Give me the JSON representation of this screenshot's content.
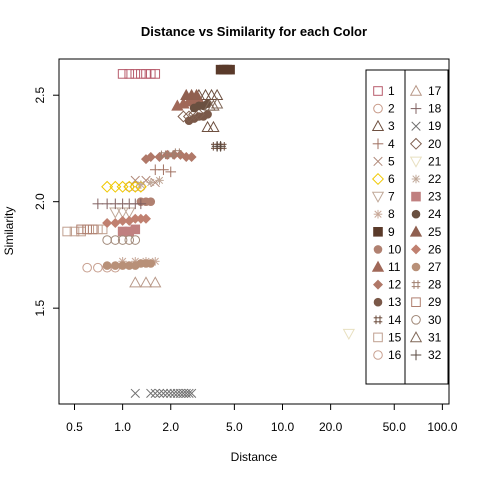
{
  "chart_data": {
    "type": "scatter",
    "title": "Distance vs Similarity for each Color",
    "xlabel": "Distance",
    "ylabel": "Similarity",
    "x_scale": "log",
    "xlim": [
      0.4,
      110
    ],
    "ylim": [
      1.05,
      2.67
    ],
    "x_ticks": [
      0.5,
      1.0,
      2.0,
      5.0,
      10.0,
      20.0,
      50.0,
      100.0
    ],
    "x_tick_labels": [
      "0.5",
      "1.0",
      "2.0",
      "5.0",
      "10.0",
      "20.0",
      "50.0",
      "100.0"
    ],
    "y_ticks": [
      1.5,
      2.0,
      2.5
    ],
    "y_tick_labels": [
      "1.5",
      "2.0",
      "2.5"
    ],
    "grid": false,
    "legend_position": "right",
    "series": [
      {
        "name": "1",
        "symbol": "square",
        "color": "#b85c6c",
        "points": [
          [
            1.0,
            2.6
          ],
          [
            1.1,
            2.6
          ],
          [
            1.2,
            2.6
          ],
          [
            1.3,
            2.6
          ],
          [
            1.4,
            2.6
          ],
          [
            1.5,
            2.6
          ],
          [
            1.6,
            2.6
          ]
        ]
      },
      {
        "name": "2",
        "symbol": "circle",
        "color": "#c89a88",
        "points": [
          [
            1.1,
            2.07
          ],
          [
            1.2,
            2.07
          ],
          [
            1.3,
            2.07
          ]
        ]
      },
      {
        "name": "3",
        "symbol": "triangle",
        "color": "#6e5040",
        "points": [
          [
            3.0,
            2.5
          ],
          [
            3.3,
            2.5
          ],
          [
            3.6,
            2.5
          ],
          [
            3.9,
            2.5
          ],
          [
            3.4,
            2.35
          ],
          [
            3.7,
            2.35
          ]
        ]
      },
      {
        "name": "4",
        "symbol": "plus",
        "color": "#a07060",
        "points": [
          [
            1.6,
            2.15
          ],
          [
            1.8,
            2.15
          ],
          [
            2.0,
            2.14
          ]
        ]
      },
      {
        "name": "5",
        "symbol": "x",
        "color": "#b08878",
        "points": [
          [
            1.2,
            2.1
          ],
          [
            1.4,
            2.1
          ],
          [
            1.6,
            2.09
          ]
        ]
      },
      {
        "name": "6",
        "symbol": "diamond",
        "color": "#f0c800",
        "points": [
          [
            0.8,
            2.07
          ],
          [
            0.9,
            2.07
          ],
          [
            1.0,
            2.07
          ],
          [
            1.1,
            2.07
          ],
          [
            1.2,
            2.07
          ],
          [
            1.3,
            2.07
          ]
        ]
      },
      {
        "name": "7",
        "symbol": "inv-triangle",
        "color": "#c0a898",
        "points": [
          [
            0.9,
            1.95
          ],
          [
            1.0,
            1.95
          ],
          [
            1.1,
            1.95
          ]
        ]
      },
      {
        "name": "8",
        "symbol": "asterisk",
        "color": "#c8a898",
        "points": [
          [
            1.0,
            1.72
          ],
          [
            1.2,
            1.72
          ],
          [
            1.4,
            1.72
          ],
          [
            1.6,
            1.72
          ]
        ]
      },
      {
        "name": "9",
        "symbol": "filled-square",
        "color": "#5a3a2a",
        "points": [
          [
            4.1,
            2.62
          ],
          [
            4.3,
            2.62
          ],
          [
            4.5,
            2.62
          ],
          [
            4.7,
            2.62
          ]
        ]
      },
      {
        "name": "10",
        "symbol": "filled-circle",
        "color": "#b08070",
        "points": [
          [
            1.3,
            2.0
          ],
          [
            1.4,
            2.0
          ],
          [
            1.5,
            2.0
          ]
        ]
      },
      {
        "name": "11",
        "symbol": "filled-triangle",
        "color": "#a06858",
        "points": [
          [
            2.2,
            2.45
          ],
          [
            2.4,
            2.46
          ],
          [
            2.6,
            2.47
          ],
          [
            2.8,
            2.48
          ],
          [
            3.0,
            2.48
          ]
        ]
      },
      {
        "name": "12",
        "symbol": "filled-diamond",
        "color": "#b07868",
        "points": [
          [
            1.4,
            2.2
          ],
          [
            1.5,
            2.21
          ],
          [
            1.7,
            2.21
          ],
          [
            1.9,
            2.22
          ],
          [
            2.1,
            2.22
          ],
          [
            2.3,
            2.22
          ],
          [
            2.5,
            2.21
          ],
          [
            2.7,
            2.21
          ]
        ]
      },
      {
        "name": "13",
        "symbol": "filled-circle",
        "color": "#7a5848",
        "points": [
          [
            2.6,
            2.38
          ],
          [
            2.8,
            2.39
          ],
          [
            3.0,
            2.4
          ],
          [
            3.2,
            2.4
          ],
          [
            3.4,
            2.41
          ]
        ]
      },
      {
        "name": "14",
        "symbol": "hash",
        "color": "#6a4a3a",
        "points": [
          [
            3.8,
            2.26
          ],
          [
            4.0,
            2.26
          ],
          [
            4.2,
            2.26
          ]
        ]
      },
      {
        "name": "15",
        "symbol": "square",
        "color": "#c0a090",
        "points": [
          [
            0.45,
            1.86
          ],
          [
            0.5,
            1.86
          ],
          [
            0.55,
            1.86
          ],
          [
            0.6,
            1.87
          ],
          [
            0.65,
            1.87
          ],
          [
            0.7,
            1.87
          ],
          [
            0.75,
            1.87
          ]
        ]
      },
      {
        "name": "16",
        "symbol": "circle",
        "color": "#c8a090",
        "points": [
          [
            0.6,
            1.69
          ],
          [
            0.7,
            1.69
          ],
          [
            0.8,
            1.69
          ],
          [
            0.9,
            1.69
          ]
        ]
      },
      {
        "name": "17",
        "symbol": "triangle",
        "color": "#b89888",
        "points": [
          [
            1.2,
            1.62
          ],
          [
            1.4,
            1.62
          ],
          [
            1.6,
            1.62
          ]
        ]
      },
      {
        "name": "18",
        "symbol": "plus",
        "color": "#806060",
        "points": [
          [
            0.7,
            1.99
          ],
          [
            0.8,
            1.99
          ],
          [
            0.9,
            1.99
          ],
          [
            1.0,
            1.99
          ],
          [
            1.1,
            1.99
          ],
          [
            1.2,
            1.99
          ],
          [
            1.3,
            1.99
          ]
        ]
      },
      {
        "name": "19",
        "symbol": "x",
        "color": "#707070",
        "points": [
          [
            1.2,
            1.1
          ],
          [
            1.5,
            1.1
          ],
          [
            1.6,
            1.1
          ],
          [
            1.7,
            1.1
          ],
          [
            1.8,
            1.1
          ],
          [
            1.9,
            1.1
          ],
          [
            2.0,
            1.1
          ],
          [
            2.1,
            1.1
          ],
          [
            2.2,
            1.1
          ],
          [
            2.3,
            1.1
          ],
          [
            2.4,
            1.1
          ],
          [
            2.5,
            1.1
          ],
          [
            2.6,
            1.1
          ],
          [
            2.7,
            1.1
          ]
        ]
      },
      {
        "name": "20",
        "symbol": "diamond",
        "color": "#806050",
        "points": [
          [
            2.4,
            2.4
          ],
          [
            2.6,
            2.4
          ],
          [
            2.8,
            2.41
          ],
          [
            3.0,
            2.41
          ]
        ]
      },
      {
        "name": "21",
        "symbol": "inv-triangle",
        "color": "#e8e0c0",
        "points": [
          [
            26.0,
            1.38
          ]
        ]
      },
      {
        "name": "22",
        "symbol": "asterisk",
        "color": "#c0a898",
        "points": [
          [
            1.3,
            2.08
          ],
          [
            1.5,
            2.09
          ],
          [
            1.7,
            2.1
          ]
        ]
      },
      {
        "name": "23",
        "symbol": "filled-square",
        "color": "#c08080",
        "points": [
          [
            1.0,
            1.86
          ],
          [
            1.1,
            1.86
          ],
          [
            1.2,
            1.87
          ]
        ]
      },
      {
        "name": "24",
        "symbol": "filled-circle",
        "color": "#6a5040",
        "points": [
          [
            2.8,
            2.44
          ],
          [
            3.0,
            2.45
          ],
          [
            3.2,
            2.45
          ],
          [
            3.4,
            2.46
          ]
        ]
      },
      {
        "name": "25",
        "symbol": "filled-triangle",
        "color": "#906050",
        "points": [
          [
            2.5,
            2.5
          ],
          [
            2.7,
            2.5
          ],
          [
            2.9,
            2.5
          ]
        ]
      },
      {
        "name": "26",
        "symbol": "filled-diamond",
        "color": "#c08070",
        "points": [
          [
            0.8,
            1.9
          ],
          [
            0.9,
            1.9
          ],
          [
            1.0,
            1.91
          ],
          [
            1.1,
            1.91
          ],
          [
            1.2,
            1.92
          ],
          [
            1.3,
            1.92
          ],
          [
            1.4,
            1.92
          ]
        ]
      },
      {
        "name": "27",
        "symbol": "filled-circle",
        "color": "#b89078",
        "points": [
          [
            0.8,
            1.7
          ],
          [
            0.9,
            1.7
          ],
          [
            1.0,
            1.7
          ],
          [
            1.1,
            1.7
          ],
          [
            1.2,
            1.7
          ],
          [
            1.3,
            1.71
          ],
          [
            1.4,
            1.71
          ],
          [
            1.5,
            1.71
          ]
        ]
      },
      {
        "name": "28",
        "symbol": "hash",
        "color": "#a08070",
        "points": [
          [
            1.8,
            2.22
          ],
          [
            2.0,
            2.22
          ],
          [
            2.2,
            2.23
          ]
        ]
      },
      {
        "name": "29",
        "symbol": "square",
        "color": "#b08070",
        "points": [
          [
            0.55,
            1.87
          ],
          [
            0.6,
            1.87
          ],
          [
            0.65,
            1.87
          ]
        ]
      },
      {
        "name": "30",
        "symbol": "circle",
        "color": "#a08878",
        "points": [
          [
            0.8,
            1.82
          ],
          [
            0.9,
            1.82
          ],
          [
            1.0,
            1.82
          ],
          [
            1.1,
            1.82
          ],
          [
            1.2,
            1.82
          ]
        ]
      },
      {
        "name": "31",
        "symbol": "triangle",
        "color": "#806858",
        "points": [
          [
            3.5,
            2.45
          ],
          [
            3.7,
            2.45
          ],
          [
            3.9,
            2.46
          ]
        ]
      },
      {
        "name": "32",
        "symbol": "plus",
        "color": "#5a4a40",
        "points": [
          [
            3.9,
            2.26
          ],
          [
            4.1,
            2.26
          ]
        ]
      }
    ]
  }
}
